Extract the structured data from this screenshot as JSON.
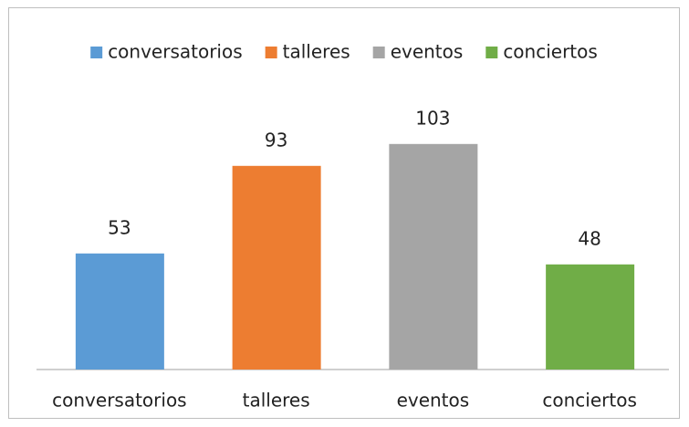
{
  "chart_data": {
    "type": "bar",
    "categories": [
      "conversatorios",
      "talleres",
      "eventos",
      "conciertos"
    ],
    "values": [
      53,
      93,
      103,
      48
    ],
    "colors": [
      "#5b9bd5",
      "#ed7d31",
      "#a5a5a5",
      "#70ad47"
    ],
    "ylim": [
      0,
      120
    ],
    "legend": "top"
  }
}
